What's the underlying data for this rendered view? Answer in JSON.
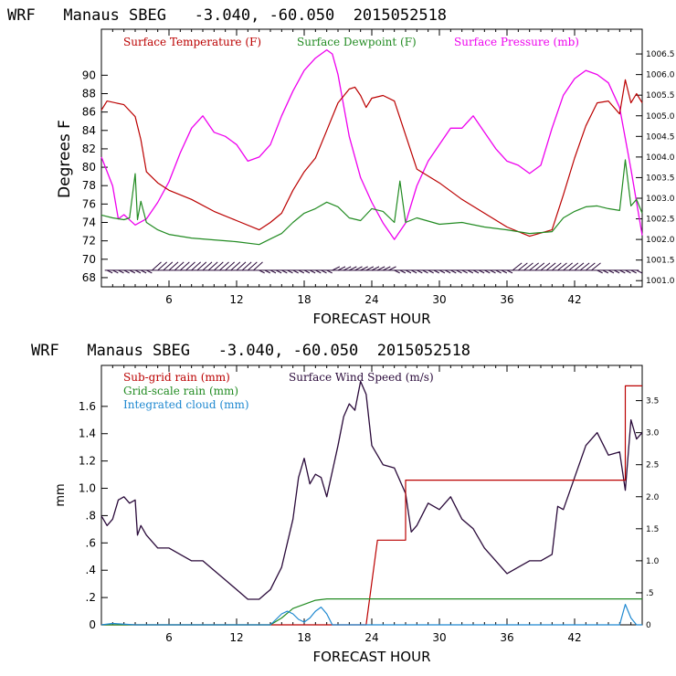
{
  "page": {
    "colors": {
      "temperature": "#bb0000",
      "dewpoint": "#228b22",
      "pressure": "#ee00ee",
      "wind": "#2a0a3a",
      "subgrid": "#bb0000",
      "gridscale": "#228b22",
      "cloud": "#1e88d0"
    }
  },
  "chart_data": [
    {
      "type": "line",
      "title": "WRF   Manaus SBEG   -3.040, -60.050  2015052518",
      "xlabel": "FORECAST HOUR",
      "ylabel": "Degrees F",
      "x_ticks": [
        6,
        12,
        18,
        24,
        30,
        36,
        42
      ],
      "xlim": [
        0,
        48
      ],
      "ylim": [
        67,
        95
      ],
      "y_ticks": [
        68,
        70,
        72,
        74,
        76,
        78,
        80,
        82,
        84,
        86,
        88,
        90
      ],
      "y2_ticks": [
        "1001.0",
        "1001.5",
        "1002.0",
        "1002.5",
        "1003.0",
        "1003.5",
        "1004.0",
        "1004.5",
        "1005.0",
        "1005.5",
        "1006.0",
        "1006.5"
      ],
      "y2lim": [
        1000.85,
        1007.1
      ],
      "legend": [
        "Surface Temperature (F)",
        "Surface Dewpoint (F)",
        "Surface Pressure (mb)"
      ],
      "series": [
        {
          "name": "Surface Temperature (F)",
          "color": "#bb0000",
          "x": [
            0,
            0.5,
            2,
            3,
            3.5,
            4,
            5,
            6,
            8,
            10,
            12,
            14,
            15,
            16,
            17,
            18,
            19,
            20,
            21,
            22,
            22.5,
            23,
            23.5,
            24,
            25,
            26,
            27,
            28,
            30,
            32,
            34,
            36,
            38,
            40,
            41,
            42,
            43,
            44,
            45,
            46,
            46.5,
            47,
            47.5,
            48
          ],
          "y": [
            86.2,
            87.2,
            86.8,
            85.5,
            83,
            79.5,
            78.3,
            77.5,
            76.5,
            75.2,
            74.2,
            73.2,
            74,
            75,
            77.5,
            79.5,
            81,
            84,
            87,
            88.5,
            88.7,
            87.8,
            86.5,
            87.5,
            87.8,
            87.2,
            83.5,
            79.8,
            78.3,
            76.5,
            75,
            73.5,
            72.5,
            73.2,
            77,
            81,
            84.5,
            87,
            87.2,
            85.8,
            89.5,
            87,
            88,
            87
          ]
        },
        {
          "name": "Surface Dewpoint (F)",
          "color": "#228b22",
          "x": [
            0,
            1,
            2,
            2.5,
            3,
            3.2,
            3.5,
            4,
            5,
            6,
            8,
            10,
            12,
            14,
            15,
            16,
            17,
            18,
            19,
            20,
            21,
            22,
            23,
            24,
            25,
            26,
            26.5,
            27,
            28,
            30,
            32,
            34,
            36,
            38,
            40,
            41,
            42,
            43,
            44,
            45,
            46,
            46.5,
            47,
            47.5,
            48
          ],
          "y": [
            74.8,
            74.5,
            74.3,
            74.5,
            79.3,
            74.3,
            76.3,
            74,
            73.2,
            72.7,
            72.3,
            72.1,
            71.9,
            71.6,
            72.2,
            72.8,
            74,
            75,
            75.5,
            76.2,
            75.7,
            74.5,
            74.2,
            75.5,
            75.2,
            74,
            78.5,
            74,
            74.5,
            73.8,
            74,
            73.5,
            73.2,
            72.8,
            73,
            74.5,
            75.2,
            75.7,
            75.8,
            75.5,
            75.3,
            80.8,
            75.8,
            76.5,
            75
          ]
        },
        {
          "name": "Surface Pressure (mb)",
          "color": "#ee00ee",
          "x": [
            0,
            1,
            1.5,
            2,
            3,
            4,
            5,
            6,
            7,
            8,
            9,
            10,
            11,
            12,
            13,
            14,
            15,
            16,
            17,
            18,
            19,
            20,
            20.5,
            21,
            22,
            23,
            24,
            25,
            26,
            27,
            28,
            29,
            30,
            31,
            32,
            33,
            34,
            35,
            36,
            37,
            38,
            39,
            40,
            41,
            42,
            43,
            44,
            45,
            46,
            47,
            48
          ],
          "y": [
            1004,
            1003.3,
            1002.5,
            1002.6,
            1002.35,
            1002.5,
            1002.9,
            1003.4,
            1004.1,
            1004.7,
            1005,
            1004.6,
            1004.5,
            1004.3,
            1003.9,
            1004,
            1004.3,
            1005,
            1005.6,
            1006.1,
            1006.4,
            1006.6,
            1006.5,
            1006,
            1004.5,
            1003.5,
            1002.9,
            1002.4,
            1002,
            1002.4,
            1003.3,
            1003.9,
            1004.3,
            1004.7,
            1004.7,
            1005,
            1004.6,
            1004.2,
            1003.9,
            1003.8,
            1003.6,
            1003.8,
            1004.7,
            1005.5,
            1005.9,
            1006.1,
            1006,
            1005.8,
            1005.2,
            1003.7,
            1002.1
          ]
        }
      ],
      "wind_barbs": "row of wind barbs along the bottom of the upper panel"
    },
    {
      "type": "line",
      "title": "WRF   Manaus SBEG   -3.040, -60.050  2015052518",
      "xlabel": "FORECAST HOUR",
      "ylabel": "mm",
      "x_ticks": [
        6,
        12,
        18,
        24,
        30,
        36,
        42
      ],
      "xlim": [
        0,
        48
      ],
      "ylim": [
        0,
        1.9
      ],
      "y_ticks": [
        "0",
        ".2",
        ".4",
        ".6",
        ".8",
        "1.0",
        "1.2",
        "1.4",
        "1.6"
      ],
      "y2_ticks": [
        "0",
        ".5",
        "1.0",
        "1.5",
        "2.0",
        "2.5",
        "3.0",
        "3.5"
      ],
      "y2lim": [
        0,
        4.05
      ],
      "legend": [
        "Sub-grid rain (mm)",
        "Grid-scale rain (mm)",
        "Integrated cloud (mm)",
        "Surface Wind Speed (m/s)"
      ],
      "series": [
        {
          "name": "Surface Wind Speed (m/s)",
          "color": "#2a0a3a",
          "axis": "right",
          "x": [
            0,
            0.5,
            1,
            1.5,
            2,
            2.5,
            3,
            3.2,
            3.5,
            4,
            5,
            6,
            7,
            8,
            9,
            10,
            11,
            12,
            13,
            14,
            15,
            16,
            17,
            17.5,
            18,
            18.5,
            19,
            19.5,
            20,
            21,
            21.5,
            22,
            22.5,
            23,
            23.5,
            24,
            25,
            26,
            27,
            27.5,
            28,
            29,
            30,
            31,
            32,
            33,
            34,
            35,
            36,
            37,
            38,
            39,
            40,
            40.5,
            41,
            42,
            43,
            44,
            45,
            46,
            46.5,
            47,
            47.5,
            48
          ],
          "y": [
            1.7,
            1.55,
            1.65,
            1.95,
            2.0,
            1.9,
            1.95,
            1.4,
            1.55,
            1.4,
            1.2,
            1.2,
            1.1,
            1.0,
            1.0,
            0.85,
            0.7,
            0.55,
            0.4,
            0.4,
            0.55,
            0.9,
            1.65,
            2.3,
            2.6,
            2.2,
            2.35,
            2.3,
            2.0,
            2.8,
            3.25,
            3.45,
            3.35,
            3.8,
            3.6,
            2.8,
            2.5,
            2.45,
            2.05,
            1.45,
            1.55,
            1.9,
            1.8,
            2.0,
            1.65,
            1.5,
            1.2,
            1.0,
            0.8,
            0.9,
            1.0,
            1.0,
            1.1,
            1.85,
            1.8,
            2.3,
            2.8,
            3.0,
            2.65,
            2.7,
            2.1,
            3.2,
            2.9,
            3.0
          ]
        },
        {
          "name": "Sub-grid rain (mm)",
          "color": "#bb0000",
          "axis": "left",
          "x": [
            0,
            23.5,
            24.5,
            24.5,
            27,
            27,
            46.5,
            46.5,
            48
          ],
          "y": [
            0,
            0,
            0.62,
            0.62,
            0.62,
            1.06,
            1.06,
            1.75,
            1.75
          ]
        },
        {
          "name": "Grid-scale rain (mm)",
          "color": "#228b22",
          "axis": "left",
          "x": [
            0,
            15,
            16,
            17,
            18,
            19,
            20,
            48
          ],
          "y": [
            0,
            0,
            0.05,
            0.12,
            0.15,
            0.18,
            0.19,
            0.19
          ]
        },
        {
          "name": "Integrated cloud (mm)",
          "color": "#1e88d0",
          "axis": "left",
          "x": [
            0,
            1,
            3,
            5,
            15,
            15.5,
            16,
            16.5,
            17,
            17.5,
            18,
            18.5,
            19,
            19.5,
            20,
            20.5,
            46,
            46.5,
            47,
            47.5,
            48
          ],
          "y": [
            0,
            0.01,
            0,
            0,
            0,
            0.04,
            0.08,
            0.1,
            0.08,
            0.04,
            0.02,
            0.05,
            0.1,
            0.13,
            0.08,
            0,
            0,
            0.15,
            0.05,
            0,
            0
          ]
        }
      ]
    }
  ]
}
